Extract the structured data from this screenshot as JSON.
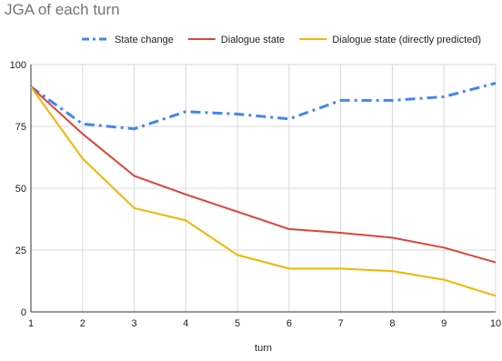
{
  "chart_data": {
    "type": "line",
    "title": "JGA of each turn",
    "xlabel": "turn",
    "ylabel": "",
    "x": [
      1,
      2,
      3,
      4,
      5,
      6,
      7,
      8,
      9,
      10
    ],
    "ylim": [
      0,
      100
    ],
    "yticks": [
      0,
      25,
      50,
      75,
      100
    ],
    "grid": true,
    "legend_position": "top",
    "series": [
      {
        "name": "State change",
        "color": "#4285F4",
        "style": "dash-dot",
        "values": [
          91,
          76,
          74,
          81,
          80,
          78,
          85.5,
          85.5,
          87,
          92.5
        ]
      },
      {
        "name": "Dialogue state",
        "color": "#DB4437",
        "style": "solid",
        "values": [
          91,
          72,
          55,
          47.5,
          40.5,
          33.5,
          32,
          30,
          26,
          20
        ]
      },
      {
        "name": "Dialogue state (directly predicted)",
        "color": "#F4B400",
        "style": "solid",
        "values": [
          91,
          62,
          42,
          37,
          23,
          17.5,
          17.5,
          16.5,
          13,
          6.5
        ]
      }
    ]
  }
}
